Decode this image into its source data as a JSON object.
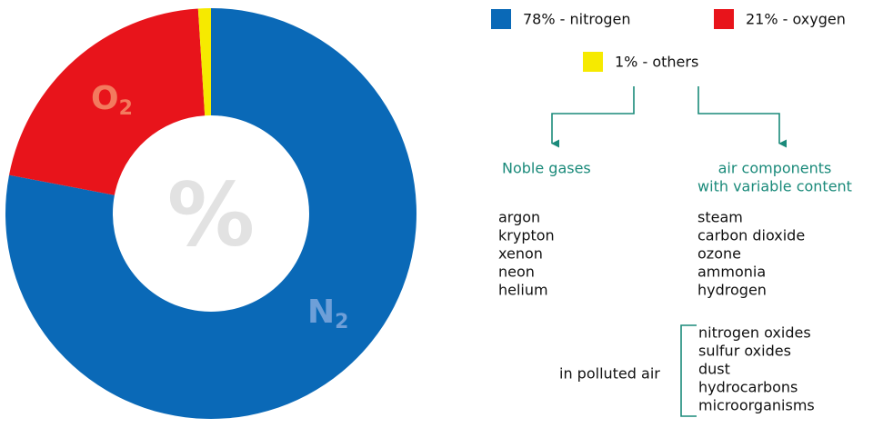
{
  "chart_data": {
    "type": "pie",
    "categories": [
      "78% - nitrogen",
      "21% - oxygen",
      "1% - others"
    ],
    "values": [
      78,
      21,
      1
    ],
    "colors": [
      "#0a69b7",
      "#e8141b",
      "#f6ea00"
    ],
    "center_label": "%",
    "slice_labels": [
      {
        "text": "N",
        "subscript": "2"
      },
      {
        "text": "O",
        "subscript": "2"
      },
      null
    ]
  },
  "noble_gases": {
    "title": "Noble gases",
    "items": [
      "argon",
      "krypton",
      "xenon",
      "neon",
      "helium"
    ]
  },
  "variable_components": {
    "title": [
      "air components",
      "with variable content"
    ],
    "items": [
      "steam",
      "carbon dioxide",
      "ozone",
      "ammonia",
      "hydrogen"
    ]
  },
  "polluted_air": {
    "label": "in polluted air",
    "items": [
      "nitrogen oxides",
      "sulfur oxides",
      "dust",
      "hydrocarbons",
      "microorganisms"
    ]
  }
}
